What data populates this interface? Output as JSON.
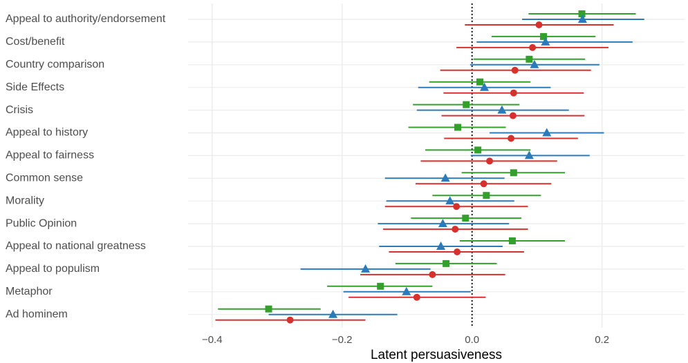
{
  "chart_data": {
    "type": "interval",
    "x_label": "Latent persuasiveness",
    "categories": [
      "Appeal to authority/endorsement",
      "Cost/benefit",
      "Country comparison",
      "Side Effects",
      "Crisis",
      "Appeal to history",
      "Appeal to fairness",
      "Common sense",
      "Morality",
      "Public Opinion",
      "Appeal to national greatness",
      "Appeal to populism",
      "Metaphor",
      "Ad hominem"
    ],
    "series": [
      {
        "color": "#33a02c",
        "marker": "square",
        "values": [
          0.169,
          0.11,
          0.088,
          0.012,
          -0.009,
          -0.022,
          0.009,
          0.064,
          0.022,
          -0.01,
          0.062,
          -0.04,
          -0.141,
          -0.313
        ],
        "lower": [
          0.087,
          0.03,
          0.002,
          -0.066,
          -0.091,
          -0.098,
          -0.072,
          -0.016,
          -0.061,
          -0.094,
          -0.019,
          -0.118,
          -0.223,
          -0.391
        ],
        "upper": [
          0.252,
          0.19,
          0.174,
          0.09,
          0.073,
          0.052,
          0.09,
          0.143,
          0.106,
          0.076,
          0.143,
          0.038,
          -0.061,
          -0.233
        ]
      },
      {
        "color": "#2b7bba",
        "marker": "triangle",
        "values": [
          0.17,
          0.113,
          0.096,
          0.019,
          0.046,
          0.115,
          0.088,
          -0.041,
          -0.034,
          -0.045,
          -0.048,
          -0.164,
          -0.101,
          -0.214
        ],
        "lower": [
          0.077,
          0.007,
          -0.003,
          -0.083,
          -0.085,
          0.027,
          -0.002,
          -0.134,
          -0.132,
          -0.145,
          -0.143,
          -0.264,
          -0.198,
          -0.313
        ],
        "upper": [
          0.265,
          0.247,
          0.196,
          0.121,
          0.149,
          0.203,
          0.181,
          0.05,
          0.065,
          0.057,
          0.047,
          -0.064,
          -0.002,
          -0.115
        ]
      },
      {
        "color": "#d7312e",
        "marker": "circle",
        "values": [
          0.103,
          0.093,
          0.066,
          0.064,
          0.063,
          0.06,
          0.027,
          0.018,
          -0.024,
          -0.026,
          -0.023,
          -0.061,
          -0.085,
          -0.28
        ],
        "lower": [
          -0.011,
          -0.024,
          -0.049,
          -0.044,
          -0.047,
          -0.043,
          -0.079,
          -0.087,
          -0.134,
          -0.137,
          -0.128,
          -0.172,
          -0.19,
          -0.395
        ],
        "upper": [
          0.218,
          0.21,
          0.183,
          0.172,
          0.173,
          0.163,
          0.131,
          0.122,
          0.086,
          0.086,
          0.08,
          0.051,
          0.021,
          -0.164
        ]
      }
    ],
    "xlim": [
      -0.437,
      0.327
    ],
    "xticks": [
      {
        "value": -0.4,
        "label": "−0.4"
      },
      {
        "value": -0.2,
        "label": "−0.2"
      },
      {
        "value": 0,
        "label": "0.0"
      },
      {
        "value": 0.2,
        "label": "0.2"
      }
    ],
    "vline": 0,
    "grid": true
  }
}
